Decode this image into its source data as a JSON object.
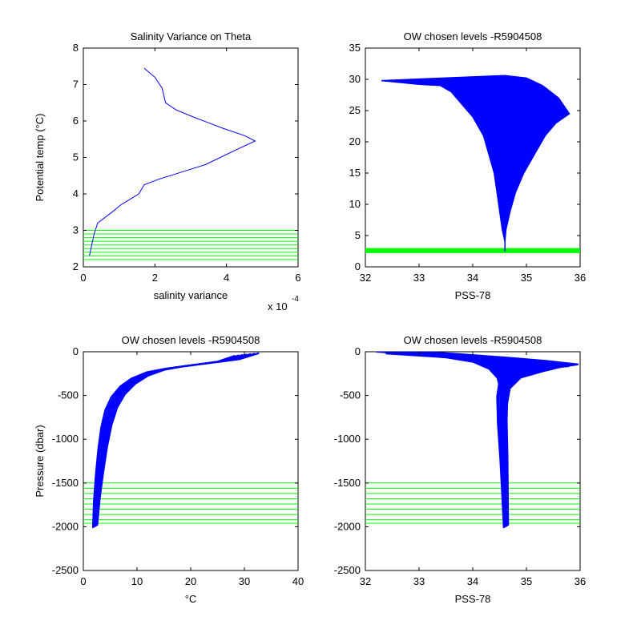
{
  "chart_data": [
    {
      "id": "variance",
      "type": "line",
      "title": "Salinity Variance on Theta",
      "xlabel": "salinity variance",
      "ylabel": "Potential temp (°C)",
      "xlim": [
        0,
        0.0006
      ],
      "ylim": [
        2,
        8
      ],
      "xticks": [
        0,
        2,
        4,
        6
      ],
      "yticks": [
        2,
        3,
        4,
        5,
        6,
        7,
        8
      ],
      "x_multiplier_label": "x 10",
      "x_multiplier_exponent": "-4",
      "series": [
        {
          "color": "#0000ff",
          "x": [
            1.7e-05,
            3e-05,
            4e-05,
            8e-05,
            0.000105,
            0.00013,
            0.000155,
            0.00017,
            0.00021,
            0.000275,
            0.00034,
            0.000425,
            0.00048,
            0.00045,
            0.00039,
            0.00031,
            0.00026,
            0.00023,
            0.00022,
            0.0002,
            0.00017
          ],
          "y": [
            2.3,
            2.9,
            3.2,
            3.5,
            3.7,
            3.85,
            4.0,
            4.25,
            4.4,
            4.6,
            4.8,
            5.2,
            5.45,
            5.6,
            5.8,
            6.1,
            6.3,
            6.5,
            6.9,
            7.2,
            7.45
          ]
        }
      ],
      "level_lines": {
        "color": "#00ff00",
        "y": [
          2.2,
          2.3,
          2.4,
          2.5,
          2.6,
          2.7,
          2.8,
          2.9,
          3.0
        ]
      }
    },
    {
      "id": "theta-sal",
      "type": "line",
      "title": "OW chosen levels -R5904508",
      "xlabel": "PSS-78",
      "ylabel": "",
      "xlim": [
        32,
        36
      ],
      "ylim": [
        0,
        35
      ],
      "xticks": [
        32,
        33,
        34,
        35,
        36
      ],
      "yticks": [
        0,
        5,
        10,
        15,
        20,
        25,
        30,
        35
      ],
      "series": [
        {
          "color": "#0000ff",
          "x": [
            34.6,
            34.6,
            34.55,
            34.5,
            34.45,
            34.4,
            34.3,
            34.2,
            34.0,
            33.8,
            33.6,
            33.4,
            33.0,
            32.3
          ],
          "y": [
            2.5,
            4.0,
            6.0,
            9.0,
            12.0,
            15.0,
            18.0,
            21.0,
            24.0,
            26.0,
            28.0,
            29.0,
            29.2,
            29.8
          ]
        },
        {
          "color": "#0000ff",
          "x": [
            34.6,
            34.6,
            34.62,
            34.7,
            34.8,
            34.95,
            35.15,
            35.35,
            35.55,
            35.8,
            35.6,
            35.3,
            35.0,
            34.6
          ],
          "y": [
            2.5,
            4.0,
            6.0,
            9.0,
            12.0,
            15.0,
            18.0,
            21.0,
            23.0,
            24.5,
            27.0,
            29.0,
            30.2,
            30.6
          ]
        }
      ],
      "level_band": {
        "color": "#00ff00",
        "y": [
          2.2,
          3.0
        ]
      }
    },
    {
      "id": "pressure-temp",
      "type": "line",
      "title": "OW chosen levels -R5904508",
      "xlabel": "°C",
      "ylabel": "Pressure (dbar)",
      "xlim": [
        0,
        40
      ],
      "ylim": [
        -2500,
        0
      ],
      "xticks": [
        0,
        10,
        20,
        30,
        40
      ],
      "yticks": [
        -2500,
        -2000,
        -1500,
        -1000,
        -500,
        0
      ],
      "series": [
        {
          "color": "#0000ff",
          "x": [
            2.2,
            2.5,
            3.0,
            3.6,
            4.3,
            5.2,
            6.5,
            8.3,
            10.5,
            13.5,
            17.0,
            22.0,
            27.0,
            30.5
          ],
          "y": [
            -2000,
            -1700,
            -1400,
            -1100,
            -850,
            -650,
            -500,
            -380,
            -290,
            -220,
            -180,
            -140,
            -100,
            -30
          ]
        }
      ],
      "level_lines": {
        "color": "#00ff00",
        "y": [
          -1500,
          -1560,
          -1620,
          -1680,
          -1740,
          -1800,
          -1860,
          -1920,
          -1960
        ]
      }
    },
    {
      "id": "pressure-sal",
      "type": "line",
      "title": "OW chosen levels -R5904508",
      "xlabel": "PSS-78",
      "ylabel": "",
      "xlim": [
        32,
        36
      ],
      "ylim": [
        -2500,
        0
      ],
      "xticks": [
        32,
        33,
        34,
        35,
        36
      ],
      "yticks": [
        -2500,
        -2000,
        -1500,
        -1000,
        -500,
        0
      ],
      "series": [
        {
          "color": "#0000ff",
          "x": [
            34.62,
            34.6,
            34.58,
            34.55,
            34.55,
            34.6,
            34.8,
            35.2,
            35.6,
            35.8,
            35.2,
            34.4,
            33.5,
            32.6
          ],
          "y": [
            -2000,
            -1600,
            -1200,
            -800,
            -500,
            -350,
            -250,
            -200,
            -170,
            -160,
            -120,
            -80,
            -40,
            -5
          ]
        }
      ],
      "level_lines": {
        "color": "#00ff00",
        "y": [
          -1500,
          -1560,
          -1620,
          -1680,
          -1740,
          -1800,
          -1860,
          -1920,
          -1960
        ]
      }
    }
  ]
}
